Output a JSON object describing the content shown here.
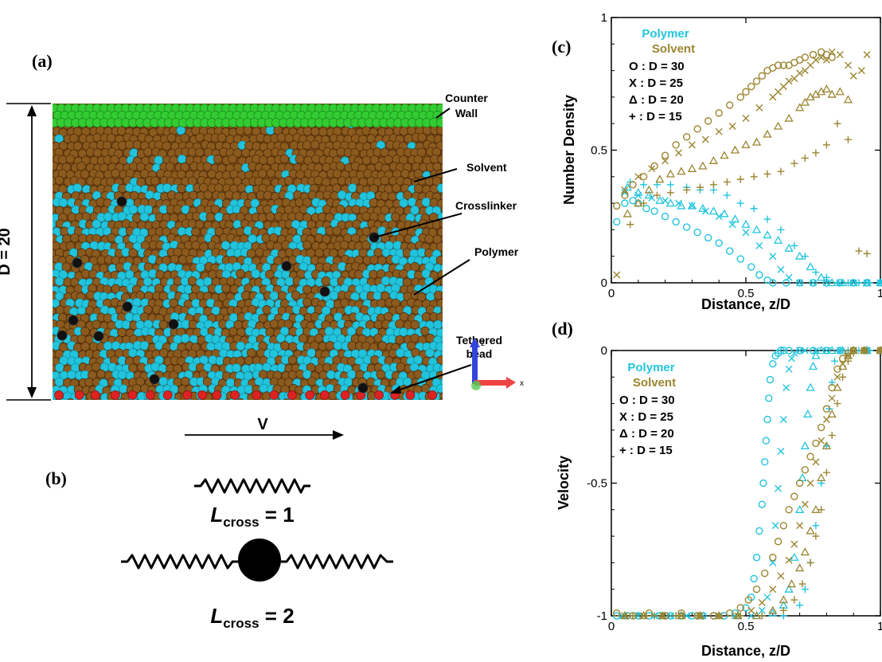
{
  "panel_a": {
    "label": "(a)",
    "dimension_label": "D = 20",
    "velocity_label": "V",
    "annotations": [
      "Counter Wall",
      "Solvent",
      "Crosslinker",
      "Polymer",
      "Tethered bead"
    ],
    "axes_triad": {
      "z": "z",
      "x": "x"
    },
    "colors": {
      "wall": "#33cc33",
      "solvent": "#8b5a1e",
      "polymer": "#22c4dd",
      "crosslinker": "#111111",
      "tethered": "#dd2222"
    }
  },
  "panel_b": {
    "label": "(b)",
    "items": [
      {
        "prefix": "L",
        "sub": "cross",
        "suffix": " = 1"
      },
      {
        "prefix": "L",
        "sub": "cross",
        "suffix": " = 2"
      }
    ]
  },
  "chart_data": [
    {
      "panel_label": "(c)",
      "type": "scatter",
      "xlabel": "Distance, z/D",
      "ylabel": "Number Density",
      "xlim": [
        0,
        1
      ],
      "ylim": [
        0,
        1
      ],
      "xticks": [
        "0",
        "0.5",
        "1"
      ],
      "yticks": [
        "0",
        "0.5",
        "1"
      ],
      "legend": {
        "polymer_label": "Polymer",
        "solvent_label": "Solvent",
        "entries": [
          "O : D = 30",
          "X : D = 25",
          "Δ : D = 20",
          "+ : D = 15"
        ]
      },
      "colors": {
        "polymer": "#22c4dd",
        "solvent": "#9b8530"
      },
      "series": [
        {
          "component": "polymer",
          "marker": "circle",
          "x": [
            0.02,
            0.05,
            0.08,
            0.1,
            0.13,
            0.16,
            0.2,
            0.24,
            0.28,
            0.32,
            0.36,
            0.4,
            0.44,
            0.48,
            0.52,
            0.55,
            0.58,
            0.6,
            0.65,
            0.7,
            0.75,
            0.8,
            0.85,
            0.9,
            0.95,
            1.0
          ],
          "y": [
            0.23,
            0.3,
            0.31,
            0.3,
            0.28,
            0.27,
            0.25,
            0.23,
            0.21,
            0.19,
            0.17,
            0.15,
            0.12,
            0.09,
            0.06,
            0.03,
            0.01,
            0.0,
            0.0,
            0.0,
            0.0,
            0.0,
            0.0,
            0.0,
            0.0,
            0.0
          ]
        },
        {
          "component": "polymer",
          "marker": "cross",
          "x": [
            0.05,
            0.1,
            0.15,
            0.2,
            0.25,
            0.3,
            0.35,
            0.4,
            0.45,
            0.5,
            0.55,
            0.6,
            0.63,
            0.66,
            0.7,
            0.75,
            0.8,
            0.85,
            0.9,
            0.95,
            1.0
          ],
          "y": [
            0.34,
            0.33,
            0.32,
            0.31,
            0.3,
            0.29,
            0.27,
            0.25,
            0.22,
            0.19,
            0.14,
            0.1,
            0.05,
            0.02,
            0.0,
            0.0,
            0.0,
            0.0,
            0.0,
            0.0,
            0.0
          ]
        },
        {
          "component": "polymer",
          "marker": "triangle",
          "x": [
            0.06,
            0.1,
            0.14,
            0.18,
            0.22,
            0.26,
            0.3,
            0.34,
            0.38,
            0.42,
            0.46,
            0.5,
            0.54,
            0.58,
            0.62,
            0.66,
            0.7,
            0.74,
            0.78,
            0.82,
            0.86,
            0.9,
            0.95,
            1.0
          ],
          "y": [
            0.36,
            0.34,
            0.33,
            0.31,
            0.3,
            0.29,
            0.29,
            0.28,
            0.27,
            0.26,
            0.24,
            0.22,
            0.2,
            0.18,
            0.16,
            0.13,
            0.1,
            0.06,
            0.02,
            0.0,
            0.0,
            0.0,
            0.0,
            0.0
          ]
        },
        {
          "component": "polymer",
          "marker": "plus",
          "x": [
            0.07,
            0.12,
            0.17,
            0.22,
            0.28,
            0.33,
            0.38,
            0.43,
            0.48,
            0.53,
            0.58,
            0.63,
            0.68,
            0.72,
            0.76,
            0.8,
            0.84,
            0.88,
            0.92,
            0.96,
            1.0
          ],
          "y": [
            0.38,
            0.37,
            0.37,
            0.37,
            0.36,
            0.35,
            0.35,
            0.33,
            0.3,
            0.28,
            0.24,
            0.2,
            0.14,
            0.1,
            0.04,
            0.02,
            0.0,
            0.0,
            0.0,
            0.0,
            0.0
          ]
        },
        {
          "component": "solvent",
          "marker": "circle",
          "x": [
            0.02,
            0.05,
            0.08,
            0.12,
            0.16,
            0.2,
            0.24,
            0.28,
            0.32,
            0.36,
            0.4,
            0.44,
            0.48,
            0.5,
            0.52,
            0.54,
            0.56,
            0.58,
            0.6,
            0.62,
            0.64,
            0.66,
            0.68,
            0.7,
            0.72,
            0.75,
            0.78,
            0.8,
            0.82
          ],
          "y": [
            0.29,
            0.33,
            0.37,
            0.4,
            0.44,
            0.48,
            0.52,
            0.55,
            0.58,
            0.61,
            0.64,
            0.67,
            0.7,
            0.72,
            0.74,
            0.76,
            0.78,
            0.8,
            0.81,
            0.82,
            0.82,
            0.82,
            0.83,
            0.84,
            0.85,
            0.86,
            0.87,
            0.86,
            0.85
          ]
        },
        {
          "component": "solvent",
          "marker": "cross",
          "x": [
            0.02,
            0.05,
            0.1,
            0.15,
            0.2,
            0.25,
            0.3,
            0.35,
            0.4,
            0.45,
            0.5,
            0.55,
            0.6,
            0.62,
            0.64,
            0.66,
            0.68,
            0.7,
            0.72,
            0.74,
            0.76,
            0.78,
            0.8,
            0.82,
            0.85,
            0.88,
            0.9,
            0.93,
            0.95
          ],
          "y": [
            0.03,
            0.35,
            0.4,
            0.43,
            0.46,
            0.49,
            0.52,
            0.54,
            0.57,
            0.59,
            0.62,
            0.66,
            0.7,
            0.72,
            0.74,
            0.76,
            0.77,
            0.79,
            0.8,
            0.82,
            0.84,
            0.85,
            0.84,
            0.87,
            0.86,
            0.82,
            0.78,
            0.8,
            0.86
          ]
        },
        {
          "component": "solvent",
          "marker": "triangle",
          "x": [
            0.06,
            0.1,
            0.14,
            0.18,
            0.22,
            0.26,
            0.3,
            0.34,
            0.38,
            0.42,
            0.46,
            0.5,
            0.54,
            0.58,
            0.62,
            0.66,
            0.7,
            0.72,
            0.74,
            0.76,
            0.78,
            0.8,
            0.82,
            0.85,
            0.88
          ],
          "y": [
            0.26,
            0.3,
            0.35,
            0.39,
            0.41,
            0.42,
            0.43,
            0.44,
            0.46,
            0.48,
            0.5,
            0.52,
            0.53,
            0.56,
            0.59,
            0.62,
            0.66,
            0.68,
            0.7,
            0.71,
            0.72,
            0.73,
            0.71,
            0.72,
            0.69
          ]
        },
        {
          "component": "solvent",
          "marker": "plus",
          "x": [
            0.07,
            0.12,
            0.17,
            0.22,
            0.28,
            0.33,
            0.38,
            0.43,
            0.48,
            0.53,
            0.58,
            0.63,
            0.68,
            0.72,
            0.76,
            0.8,
            0.84,
            0.88,
            0.92,
            0.95
          ],
          "y": [
            0.22,
            0.3,
            0.33,
            0.34,
            0.35,
            0.36,
            0.37,
            0.38,
            0.39,
            0.4,
            0.41,
            0.42,
            0.45,
            0.47,
            0.49,
            0.52,
            0.6,
            0.54,
            0.12,
            0.11
          ]
        }
      ]
    },
    {
      "panel_label": "(d)",
      "type": "scatter",
      "xlabel": "Distance, z/D",
      "ylabel": "Velocity",
      "xlim": [
        0,
        1
      ],
      "ylim": [
        -1,
        0
      ],
      "xticks": [
        "0",
        "0.5",
        "1"
      ],
      "yticks": [
        "0",
        "-0.5",
        "-1"
      ],
      "legend": {
        "polymer_label": "Polymer",
        "solvent_label": "Solvent",
        "entries": [
          "O : D = 30",
          "X : D = 25",
          "Δ : D = 20",
          "+ : D = 15"
        ]
      },
      "colors": {
        "polymer": "#22c4dd",
        "solvent": "#9b8530"
      },
      "series": [
        {
          "component": "polymer",
          "marker": "circle",
          "x": [
            0.02,
            0.06,
            0.1,
            0.14,
            0.18,
            0.22,
            0.26,
            0.3,
            0.34,
            0.38,
            0.42,
            0.46,
            0.5,
            0.52,
            0.53,
            0.54,
            0.55,
            0.56,
            0.565,
            0.57,
            0.575,
            0.58,
            0.585,
            0.59,
            0.6,
            0.61,
            0.62,
            0.63,
            0.64,
            0.66,
            0.7,
            0.75,
            0.8,
            0.85,
            0.9,
            0.95,
            1.0
          ],
          "y": [
            -1,
            -1,
            -1,
            -1,
            -1,
            -1,
            -1,
            -1,
            -1,
            -1,
            -1,
            -0.99,
            -0.97,
            -0.93,
            -0.86,
            -0.78,
            -0.68,
            -0.58,
            -0.5,
            -0.42,
            -0.34,
            -0.26,
            -0.18,
            -0.11,
            -0.05,
            -0.02,
            -0.01,
            0,
            0,
            0,
            0,
            0,
            0,
            0,
            0,
            0,
            0
          ]
        },
        {
          "component": "polymer",
          "marker": "cross",
          "x": [
            0.04,
            0.1,
            0.16,
            0.22,
            0.28,
            0.34,
            0.4,
            0.46,
            0.52,
            0.56,
            0.58,
            0.6,
            0.61,
            0.62,
            0.63,
            0.64,
            0.65,
            0.66,
            0.67,
            0.68,
            0.7,
            0.72,
            0.76,
            0.8,
            0.85,
            0.9,
            0.95,
            1.0
          ],
          "y": [
            -1,
            -1,
            -1,
            -1,
            -1,
            -1,
            -1,
            -1,
            -1,
            -0.98,
            -0.93,
            -0.8,
            -0.66,
            -0.52,
            -0.38,
            -0.26,
            -0.14,
            -0.07,
            -0.03,
            -0.01,
            0,
            0,
            0,
            0,
            0,
            0,
            0,
            0
          ]
        },
        {
          "component": "polymer",
          "marker": "triangle",
          "x": [
            0.05,
            0.12,
            0.19,
            0.26,
            0.33,
            0.4,
            0.47,
            0.54,
            0.6,
            0.64,
            0.66,
            0.68,
            0.7,
            0.71,
            0.72,
            0.73,
            0.74,
            0.75,
            0.76,
            0.78,
            0.82,
            0.86,
            0.9,
            0.95,
            1.0
          ],
          "y": [
            -1,
            -1,
            -1,
            -1,
            -1,
            -1,
            -1,
            -1,
            -0.99,
            -0.96,
            -0.9,
            -0.78,
            -0.6,
            -0.48,
            -0.36,
            -0.24,
            -0.14,
            -0.06,
            -0.02,
            0,
            0,
            0,
            0,
            0,
            0
          ]
        },
        {
          "component": "polymer",
          "marker": "plus",
          "x": [
            0.08,
            0.16,
            0.24,
            0.32,
            0.4,
            0.48,
            0.56,
            0.64,
            0.7,
            0.72,
            0.74,
            0.76,
            0.78,
            0.8,
            0.81,
            0.82,
            0.83,
            0.85,
            0.88,
            0.92,
            0.96,
            1.0
          ],
          "y": [
            -1,
            -1,
            -1,
            -1,
            -1,
            -1,
            -1,
            -1,
            -0.96,
            -0.9,
            -0.8,
            -0.66,
            -0.5,
            -0.36,
            -0.22,
            -0.12,
            -0.04,
            0,
            0,
            0,
            0,
            0
          ]
        },
        {
          "component": "solvent",
          "marker": "circle",
          "x": [
            0.02,
            0.08,
            0.14,
            0.2,
            0.26,
            0.32,
            0.38,
            0.44,
            0.48,
            0.51,
            0.54,
            0.57,
            0.6,
            0.62,
            0.64,
            0.66,
            0.68,
            0.7,
            0.72,
            0.74,
            0.76,
            0.78,
            0.8,
            0.82,
            0.84,
            0.86,
            0.88,
            0.9,
            0.94,
            1.0
          ],
          "y": [
            -0.99,
            -1,
            -0.99,
            -1,
            -0.99,
            -1,
            -1,
            -0.99,
            -0.97,
            -0.94,
            -0.9,
            -0.84,
            -0.78,
            -0.72,
            -0.66,
            -0.6,
            -0.55,
            -0.5,
            -0.45,
            -0.4,
            -0.35,
            -0.29,
            -0.22,
            -0.14,
            -0.07,
            -0.03,
            -0.01,
            0,
            0,
            0
          ]
        },
        {
          "component": "solvent",
          "marker": "cross",
          "x": [
            0.05,
            0.12,
            0.19,
            0.26,
            0.33,
            0.4,
            0.47,
            0.52,
            0.56,
            0.6,
            0.63,
            0.66,
            0.68,
            0.7,
            0.72,
            0.74,
            0.76,
            0.78,
            0.8,
            0.82,
            0.84,
            0.86,
            0.88,
            0.9,
            0.94,
            1.0
          ],
          "y": [
            -1,
            -1,
            -1,
            -1,
            -1,
            -1,
            -1,
            -0.98,
            -0.95,
            -0.9,
            -0.85,
            -0.79,
            -0.73,
            -0.66,
            -0.58,
            -0.5,
            -0.42,
            -0.34,
            -0.26,
            -0.18,
            -0.1,
            -0.05,
            -0.02,
            0,
            0,
            0
          ]
        },
        {
          "component": "solvent",
          "marker": "triangle",
          "x": [
            0.05,
            0.12,
            0.19,
            0.26,
            0.33,
            0.4,
            0.47,
            0.54,
            0.6,
            0.64,
            0.67,
            0.7,
            0.72,
            0.74,
            0.76,
            0.78,
            0.8,
            0.82,
            0.84,
            0.86,
            0.88,
            0.9,
            0.94,
            1.0
          ],
          "y": [
            -1,
            -1,
            -1,
            -1,
            -1,
            -1,
            -1,
            -1,
            -0.98,
            -0.94,
            -0.88,
            -0.82,
            -0.76,
            -0.68,
            -0.6,
            -0.48,
            -0.36,
            -0.24,
            -0.14,
            -0.06,
            -0.02,
            0,
            0,
            0
          ]
        },
        {
          "component": "solvent",
          "marker": "plus",
          "x": [
            0.08,
            0.16,
            0.24,
            0.32,
            0.4,
            0.48,
            0.56,
            0.64,
            0.68,
            0.71,
            0.74,
            0.76,
            0.78,
            0.8,
            0.82,
            0.84,
            0.86,
            0.88,
            0.9,
            0.94,
            1.0
          ],
          "y": [
            -1,
            -1,
            -1,
            -1,
            -1,
            -1,
            -1,
            -0.98,
            -0.94,
            -0.88,
            -0.8,
            -0.7,
            -0.6,
            -0.46,
            -0.32,
            -0.2,
            -0.1,
            -0.04,
            -0.01,
            0,
            0
          ]
        }
      ]
    }
  ]
}
